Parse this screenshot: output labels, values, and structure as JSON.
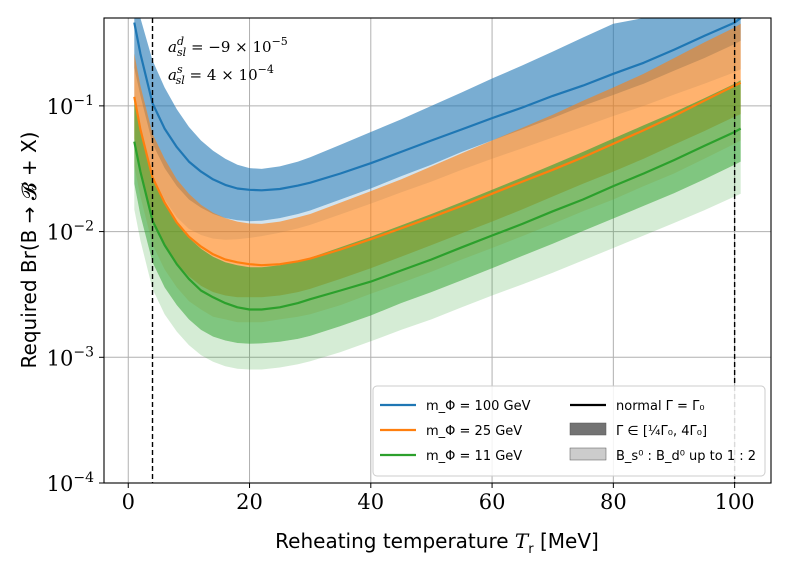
{
  "chart_data": {
    "type": "line",
    "xlabel": "Reheating temperature T_r [MeV]",
    "ylabel": "Required Br(B → 𝓑 + X)",
    "xlim": [
      -4,
      106
    ],
    "ylim": [
      0.0001,
      0.5
    ],
    "y_scale": "log",
    "grid": true,
    "legend_position": "lower-right",
    "x_ticks": [
      0,
      20,
      40,
      60,
      80,
      100
    ],
    "x_tick_labels": [
      "0",
      "20",
      "40",
      "60",
      "80",
      "100"
    ],
    "y_ticks": [
      0.0001,
      0.001,
      0.01,
      0.1
    ],
    "y_tick_labels": [
      "10^−4",
      "10^−3",
      "10^−2",
      "10^−1"
    ],
    "vlines": [
      4,
      100
    ],
    "annotations": [
      "a_sl^d = −9 × 10^−5",
      "a_sl^s = 4 × 10^−4"
    ],
    "x": [
      1,
      2,
      4,
      6,
      8,
      10,
      12,
      14,
      16,
      18,
      20,
      22,
      25,
      28,
      30,
      35,
      40,
      45,
      50,
      55,
      60,
      65,
      70,
      75,
      80,
      85,
      90,
      95,
      100,
      101
    ],
    "series": [
      {
        "name": "m_Φ = 100 GeV",
        "color": "#1f77b4",
        "values": [
          0.46,
          0.26,
          0.105,
          0.066,
          0.047,
          0.036,
          0.03,
          0.026,
          0.0235,
          0.022,
          0.0215,
          0.0213,
          0.0218,
          0.0232,
          0.0245,
          0.029,
          0.035,
          0.043,
          0.053,
          0.065,
          0.08,
          0.097,
          0.12,
          0.145,
          0.18,
          0.22,
          0.28,
          0.36,
          0.46,
          0.5
        ],
        "band_gamma_low": [
          0.2,
          0.12,
          0.05,
          0.032,
          0.023,
          0.018,
          0.0155,
          0.0138,
          0.0128,
          0.0123,
          0.0121,
          0.0122,
          0.0128,
          0.0138,
          0.0147,
          0.018,
          0.022,
          0.0275,
          0.034,
          0.043,
          0.053,
          0.065,
          0.08,
          0.1,
          0.122,
          0.15,
          0.19,
          0.24,
          0.31,
          0.33
        ],
        "band_gamma_high": [
          0.5,
          0.5,
          0.23,
          0.14,
          0.094,
          0.068,
          0.053,
          0.044,
          0.038,
          0.034,
          0.032,
          0.0315,
          0.033,
          0.036,
          0.039,
          0.049,
          0.062,
          0.078,
          0.1,
          0.128,
          0.165,
          0.21,
          0.27,
          0.35,
          0.45,
          0.5,
          0.5,
          0.5,
          0.5,
          0.5
        ],
        "band_ratio_low": [
          0.11,
          0.065,
          0.028,
          0.018,
          0.013,
          0.0105,
          0.0094,
          0.0088,
          0.0086,
          0.0087,
          0.0089,
          0.0092,
          0.0098,
          0.0106,
          0.0113,
          0.0137,
          0.0167,
          0.0205,
          0.025,
          0.031,
          0.038,
          0.046,
          0.056,
          0.068,
          0.083,
          0.1,
          0.123,
          0.15,
          0.185,
          0.195
        ]
      },
      {
        "name": "m_Φ = 25 GeV",
        "color": "#ff7f0e",
        "values": [
          0.118,
          0.065,
          0.027,
          0.017,
          0.0118,
          0.0091,
          0.0076,
          0.0066,
          0.006,
          0.0057,
          0.0055,
          0.0054,
          0.0055,
          0.0058,
          0.0061,
          0.0072,
          0.0087,
          0.0106,
          0.013,
          0.016,
          0.02,
          0.025,
          0.031,
          0.039,
          0.05,
          0.064,
          0.083,
          0.11,
          0.145,
          0.153
        ],
        "band_gamma_low": [
          0.055,
          0.03,
          0.0125,
          0.0079,
          0.0056,
          0.0044,
          0.0037,
          0.0033,
          0.0031,
          0.003,
          0.003,
          0.003,
          0.0031,
          0.0033,
          0.0035,
          0.0042,
          0.0051,
          0.0063,
          0.0078,
          0.0097,
          0.012,
          0.015,
          0.019,
          0.024,
          0.03,
          0.038,
          0.049,
          0.063,
          0.082,
          0.086
        ],
        "band_gamma_high": [
          0.26,
          0.145,
          0.06,
          0.038,
          0.026,
          0.02,
          0.0163,
          0.0141,
          0.0128,
          0.012,
          0.0116,
          0.0115,
          0.012,
          0.013,
          0.0138,
          0.017,
          0.021,
          0.026,
          0.033,
          0.042,
          0.053,
          0.067,
          0.085,
          0.11,
          0.14,
          0.18,
          0.24,
          0.32,
          0.42,
          0.45
        ],
        "band_ratio_low": [
          0.033,
          0.019,
          0.0079,
          0.005,
          0.0036,
          0.0028,
          0.0024,
          0.0021,
          0.002,
          0.0019,
          0.0019,
          0.0019,
          0.002,
          0.0021,
          0.0022,
          0.0026,
          0.0032,
          0.0039,
          0.0048,
          0.006,
          0.0074,
          0.0092,
          0.0115,
          0.0145,
          0.018,
          0.023,
          0.029,
          0.038,
          0.05,
          0.053
        ]
      },
      {
        "name": "m_Φ = 11 GeV",
        "color": "#2ca02c",
        "values": [
          0.052,
          0.03,
          0.0122,
          0.0078,
          0.0055,
          0.0042,
          0.0034,
          0.003,
          0.0027,
          0.0025,
          0.0024,
          0.0024,
          0.0025,
          0.0027,
          0.0029,
          0.0034,
          0.004,
          0.0049,
          0.006,
          0.0075,
          0.0093,
          0.0115,
          0.0145,
          0.018,
          0.023,
          0.029,
          0.037,
          0.048,
          0.062,
          0.066
        ],
        "band_gamma_low": [
          0.024,
          0.0135,
          0.0057,
          0.0036,
          0.0026,
          0.002,
          0.00165,
          0.00146,
          0.00136,
          0.0013,
          0.00128,
          0.00129,
          0.00133,
          0.0014,
          0.00148,
          0.00177,
          0.00215,
          0.0027,
          0.0033,
          0.0041,
          0.0051,
          0.0064,
          0.008,
          0.0101,
          0.0127,
          0.016,
          0.0202,
          0.026,
          0.034,
          0.036
        ],
        "band_gamma_high": [
          0.11,
          0.063,
          0.026,
          0.0165,
          0.0116,
          0.0089,
          0.0073,
          0.0063,
          0.0057,
          0.0054,
          0.0052,
          0.0052,
          0.0054,
          0.0058,
          0.0062,
          0.0075,
          0.0091,
          0.0112,
          0.0138,
          0.0172,
          0.0215,
          0.027,
          0.034,
          0.043,
          0.055,
          0.07,
          0.089,
          0.115,
          0.15,
          0.16
        ],
        "band_ratio_low": [
          0.015,
          0.0085,
          0.0035,
          0.0022,
          0.0016,
          0.00125,
          0.00104,
          0.00092,
          0.00085,
          0.00081,
          0.0008,
          0.0008,
          0.00083,
          0.00088,
          0.00093,
          0.0011,
          0.00134,
          0.00165,
          0.002,
          0.0025,
          0.0031,
          0.0038,
          0.0047,
          0.0059,
          0.0074,
          0.0093,
          0.0117,
          0.0148,
          0.019,
          0.02
        ]
      }
    ],
    "legend": [
      {
        "label": "m_Φ = 100 GeV",
        "kind": "line",
        "color": "#1f77b4"
      },
      {
        "label": "m_Φ = 25 GeV",
        "kind": "line",
        "color": "#ff7f0e"
      },
      {
        "label": "m_Φ = 11 GeV",
        "kind": "line",
        "color": "#2ca02c"
      },
      {
        "label": "normal Γ = Γ₀",
        "kind": "line",
        "color": "#000000"
      },
      {
        "label": "Γ ∈ [¼Γ₀, 4Γ₀]",
        "kind": "patch",
        "color": "#000000",
        "opacity": 0.55
      },
      {
        "label": "B_s⁰ : B_d⁰ up to 1 : 2",
        "kind": "patch",
        "color": "#000000",
        "opacity": 0.2
      }
    ]
  }
}
